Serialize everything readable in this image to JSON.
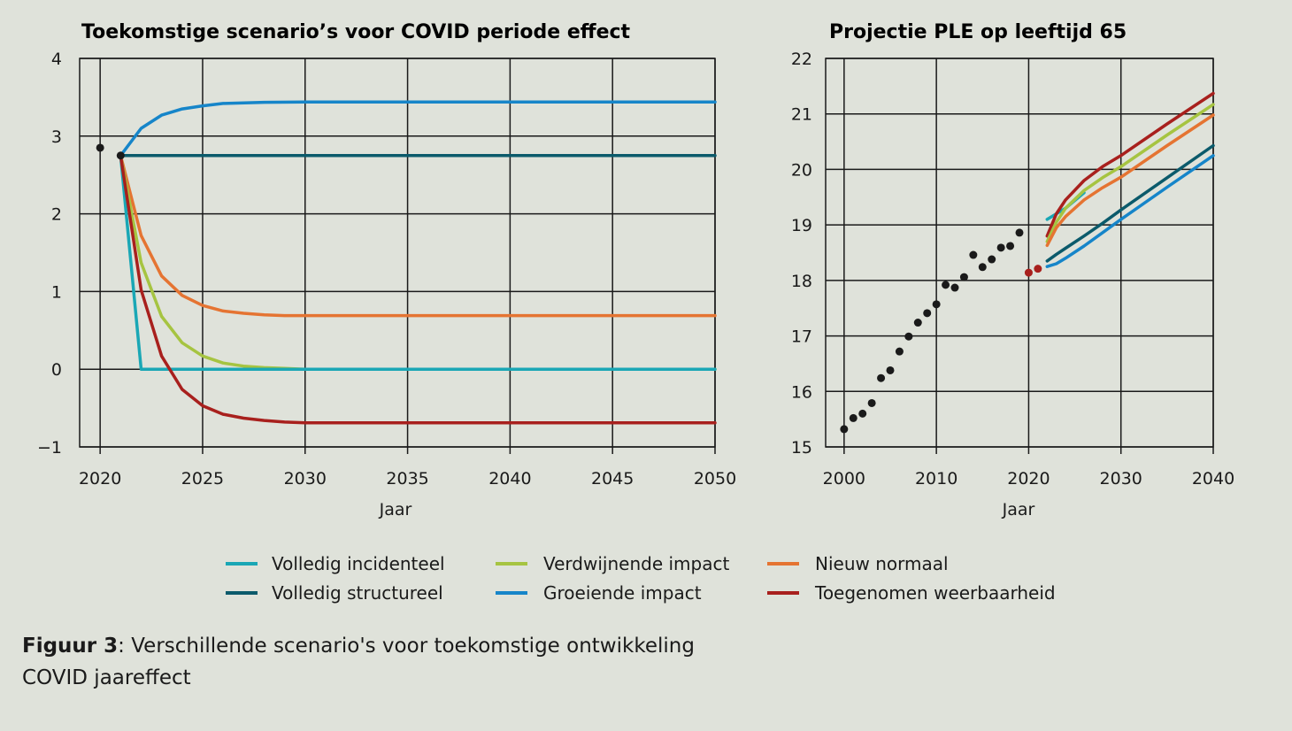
{
  "colors": {
    "background": "#dfe2da",
    "grid": "#1a1a1a",
    "volledig_incidenteel": "#1aa7b5",
    "volledig_structureel": "#0b5a6b",
    "verdwijnende_impact": "#a6c441",
    "groeiende_impact": "#1685c9",
    "nieuw_normaal": "#e57432",
    "toegenomen_weerbaarheid": "#a8201d",
    "observed": "#1a1a1a"
  },
  "legend": [
    {
      "key": "volledig_incidenteel",
      "label": "Volledig incidenteel"
    },
    {
      "key": "verdwijnende_impact",
      "label": "Verdwijnende impact"
    },
    {
      "key": "nieuw_normaal",
      "label": "Nieuw normaal"
    },
    {
      "key": "volledig_structureel",
      "label": "Volledig structureel"
    },
    {
      "key": "groeiende_impact",
      "label": "Groeiende impact"
    },
    {
      "key": "toegenomen_weerbaarheid",
      "label": "Toegenomen weerbaarheid"
    }
  ],
  "caption": {
    "label": "Figuur 3",
    "text": ": Verschillende scenario's voor toekomstige ontwikkeling COVID jaareffect"
  },
  "chart_data": [
    {
      "type": "line",
      "title": "Toekomstige scenario’s voor COVID periode effect",
      "xlabel": "Jaar",
      "ylabel": "",
      "xlim": [
        2019,
        2050
      ],
      "ylim": [
        -1,
        4
      ],
      "xticks": [
        2020,
        2025,
        2030,
        2035,
        2040,
        2045,
        2050
      ],
      "yticks": [
        -1,
        0,
        1,
        2,
        3,
        4
      ],
      "ytick_labels": [
        "−1",
        "0",
        "1",
        "2",
        "3",
        "4"
      ],
      "grid": true,
      "observed_points": [
        {
          "x": 2020,
          "y": 2.85,
          "color_key": "observed"
        },
        {
          "x": 2021,
          "y": 2.75,
          "color_key": "observed"
        }
      ],
      "series": [
        {
          "key": "volledig_structureel",
          "x": [
            2021,
            2050
          ],
          "y": [
            2.75,
            2.75
          ]
        },
        {
          "key": "groeiende_impact",
          "x": [
            2021,
            2022,
            2023,
            2024,
            2025,
            2026,
            2028,
            2030,
            2050
          ],
          "y": [
            2.75,
            3.1,
            3.27,
            3.35,
            3.39,
            3.42,
            3.435,
            3.44,
            3.44
          ]
        },
        {
          "key": "nieuw_normaal",
          "x": [
            2021,
            2022,
            2023,
            2024,
            2025,
            2026,
            2027,
            2028,
            2029,
            2030,
            2050
          ],
          "y": [
            2.75,
            1.72,
            1.2,
            0.95,
            0.82,
            0.75,
            0.72,
            0.7,
            0.69,
            0.69,
            0.69
          ]
        },
        {
          "key": "verdwijnende_impact",
          "x": [
            2021,
            2022,
            2023,
            2024,
            2025,
            2026,
            2027,
            2028,
            2029,
            2030,
            2050
          ],
          "y": [
            2.75,
            1.37,
            0.68,
            0.34,
            0.17,
            0.08,
            0.04,
            0.02,
            0.01,
            0,
            0
          ]
        },
        {
          "key": "volledig_incidenteel",
          "x": [
            2021,
            2022,
            2050
          ],
          "y": [
            2.75,
            0,
            0
          ]
        },
        {
          "key": "toegenomen_weerbaarheid",
          "x": [
            2021,
            2022,
            2023,
            2024,
            2025,
            2026,
            2027,
            2028,
            2029,
            2030,
            2050
          ],
          "y": [
            2.75,
            1.02,
            0.17,
            -0.26,
            -0.47,
            -0.58,
            -0.63,
            -0.66,
            -0.68,
            -0.69,
            -0.69
          ]
        }
      ]
    },
    {
      "type": "line",
      "title": "Projectie PLE op leeftijd 65",
      "xlabel": "Jaar",
      "ylabel": "",
      "xlim": [
        1998,
        2040
      ],
      "ylim": [
        15,
        22
      ],
      "xticks": [
        2000,
        2010,
        2020,
        2030,
        2040
      ],
      "yticks": [
        15,
        16,
        17,
        18,
        19,
        20,
        21,
        22
      ],
      "ytick_labels": [
        "15",
        "16",
        "17",
        "18",
        "19",
        "20",
        "21",
        "22"
      ],
      "grid": true,
      "observed_points": [
        {
          "x": 2000,
          "y": 15.32,
          "color_key": "observed"
        },
        {
          "x": 2001,
          "y": 15.52,
          "color_key": "observed"
        },
        {
          "x": 2002,
          "y": 15.6,
          "color_key": "observed"
        },
        {
          "x": 2003,
          "y": 15.79,
          "color_key": "observed"
        },
        {
          "x": 2004,
          "y": 16.24,
          "color_key": "observed"
        },
        {
          "x": 2005,
          "y": 16.38,
          "color_key": "observed"
        },
        {
          "x": 2006,
          "y": 16.72,
          "color_key": "observed"
        },
        {
          "x": 2007,
          "y": 16.99,
          "color_key": "observed"
        },
        {
          "x": 2008,
          "y": 17.24,
          "color_key": "observed"
        },
        {
          "x": 2009,
          "y": 17.41,
          "color_key": "observed"
        },
        {
          "x": 2010,
          "y": 17.57,
          "color_key": "observed"
        },
        {
          "x": 2011,
          "y": 17.92,
          "color_key": "observed"
        },
        {
          "x": 2012,
          "y": 17.87,
          "color_key": "observed"
        },
        {
          "x": 2013,
          "y": 18.06,
          "color_key": "observed"
        },
        {
          "x": 2014,
          "y": 18.46,
          "color_key": "observed"
        },
        {
          "x": 2015,
          "y": 18.24,
          "color_key": "observed"
        },
        {
          "x": 2016,
          "y": 18.38,
          "color_key": "observed"
        },
        {
          "x": 2017,
          "y": 18.59,
          "color_key": "observed"
        },
        {
          "x": 2018,
          "y": 18.62,
          "color_key": "observed"
        },
        {
          "x": 2019,
          "y": 18.86,
          "color_key": "observed"
        },
        {
          "x": 2020,
          "y": 18.14,
          "color_key": "toegenomen_weerbaarheid"
        },
        {
          "x": 2021,
          "y": 18.21,
          "color_key": "toegenomen_weerbaarheid"
        }
      ],
      "series": [
        {
          "key": "volledig_incidenteel",
          "x": [
            2022,
            2023,
            2024,
            2026
          ],
          "y": [
            19.1,
            19.2,
            19.3,
            19.58
          ]
        },
        {
          "key": "toegenomen_weerbaarheid",
          "x": [
            2022,
            2023,
            2024,
            2026,
            2028,
            2030,
            2035,
            2040
          ],
          "y": [
            18.8,
            19.2,
            19.45,
            19.8,
            20.05,
            20.25,
            20.82,
            21.37
          ]
        },
        {
          "key": "verdwijnende_impact",
          "x": [
            2022,
            2023,
            2024,
            2026,
            2028,
            2030,
            2035,
            2040
          ],
          "y": [
            18.7,
            19.05,
            19.3,
            19.62,
            19.85,
            20.05,
            20.62,
            21.17
          ]
        },
        {
          "key": "nieuw_normaal",
          "x": [
            2022,
            2023,
            2024,
            2026,
            2028,
            2030,
            2035,
            2040
          ],
          "y": [
            18.63,
            18.95,
            19.15,
            19.45,
            19.67,
            19.86,
            20.43,
            20.98
          ]
        },
        {
          "key": "volledig_structureel",
          "x": [
            2022,
            2023,
            2024,
            2026,
            2028,
            2030,
            2035,
            2040
          ],
          "y": [
            18.35,
            18.47,
            18.58,
            18.8,
            19.03,
            19.27,
            19.85,
            20.43
          ]
        },
        {
          "key": "groeiende_impact",
          "x": [
            2022,
            2023,
            2024,
            2026,
            2028,
            2030,
            2035,
            2040
          ],
          "y": [
            18.25,
            18.3,
            18.4,
            18.62,
            18.86,
            19.1,
            19.68,
            20.25
          ]
        }
      ]
    }
  ]
}
